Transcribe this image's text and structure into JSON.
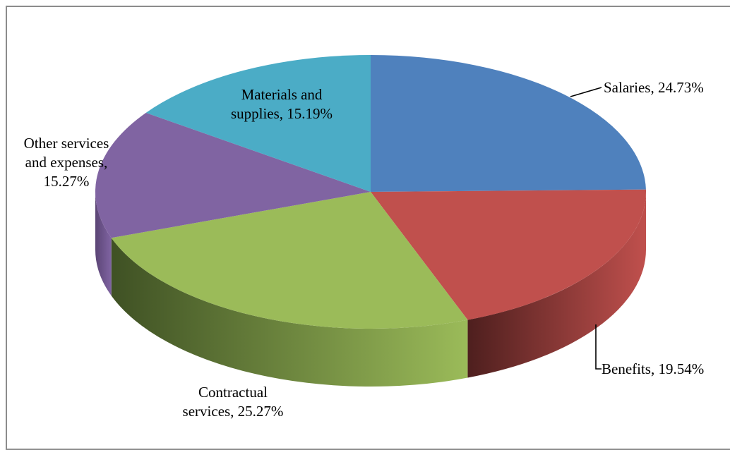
{
  "chart_data": {
    "type": "pie",
    "three_d": true,
    "title": "",
    "legend": "none",
    "slices": [
      {
        "label": "Salaries",
        "value": 24.73,
        "display": "Salaries, 24.73%",
        "color": "#4F81BD",
        "side_color": "#2B4A74"
      },
      {
        "label": "Benefits",
        "value": 19.54,
        "display": "Benefits, 19.54%",
        "color": "#C0504D",
        "side_color": "#4E1F1E"
      },
      {
        "label": "Contractual services",
        "value": 25.27,
        "display": "Contractual services, 25.27%",
        "color": "#9BBB59",
        "side_color": "#3F5124"
      },
      {
        "label": "Other services and expenses",
        "value": 15.27,
        "display": "Other services and expenses, 15.27%",
        "color": "#8064A2",
        "side_color": "#5B4575"
      },
      {
        "label": "Materials and supplies",
        "value": 15.19,
        "display": "Materials and supplies, 15.19%",
        "color": "#4BACC6",
        "side_color": "#2C6E80"
      }
    ],
    "data_labels": [
      {
        "lines": [
          "Salaries, 24.73%"
        ]
      },
      {
        "lines": [
          "Benefits, 19.54%"
        ]
      },
      {
        "lines": [
          "Contractual",
          "services, 25.27%"
        ]
      },
      {
        "lines": [
          "Other services",
          "and expenses,",
          "15.27%"
        ]
      },
      {
        "lines": [
          "Materials and",
          "supplies, 15.19%"
        ]
      }
    ]
  }
}
